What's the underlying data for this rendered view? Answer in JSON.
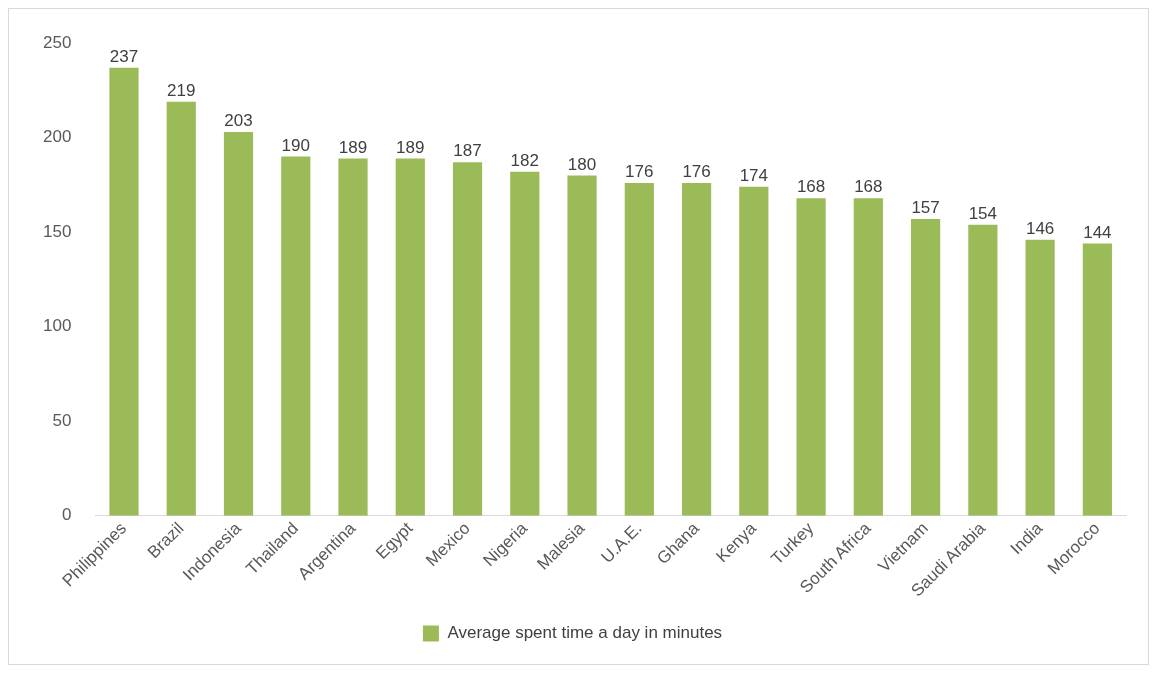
{
  "chart_data": {
    "type": "bar",
    "categories": [
      "Philippines",
      "Brazil",
      "Indonesia",
      "Thailand",
      "Argentina",
      "Egypt",
      "Mexico",
      "Nigeria",
      "Malesia",
      "U.A.E.",
      "Ghana",
      "Kenya",
      "Turkey",
      "South Africa",
      "Vietnam",
      "Saudi Arabia",
      "India",
      "Morocco"
    ],
    "series": [
      {
        "name": "Average spent time a day in minutes",
        "color": "#9bbb59",
        "values": [
          237,
          219,
          203,
          190,
          189,
          189,
          187,
          182,
          180,
          176,
          176,
          174,
          168,
          168,
          157,
          154,
          146,
          144
        ]
      }
    ],
    "ylim": [
      0,
      250
    ],
    "yticks": [
      0,
      50,
      100,
      150,
      200,
      250
    ],
    "grid": false,
    "legend": "bottom",
    "data_labels": true
  }
}
